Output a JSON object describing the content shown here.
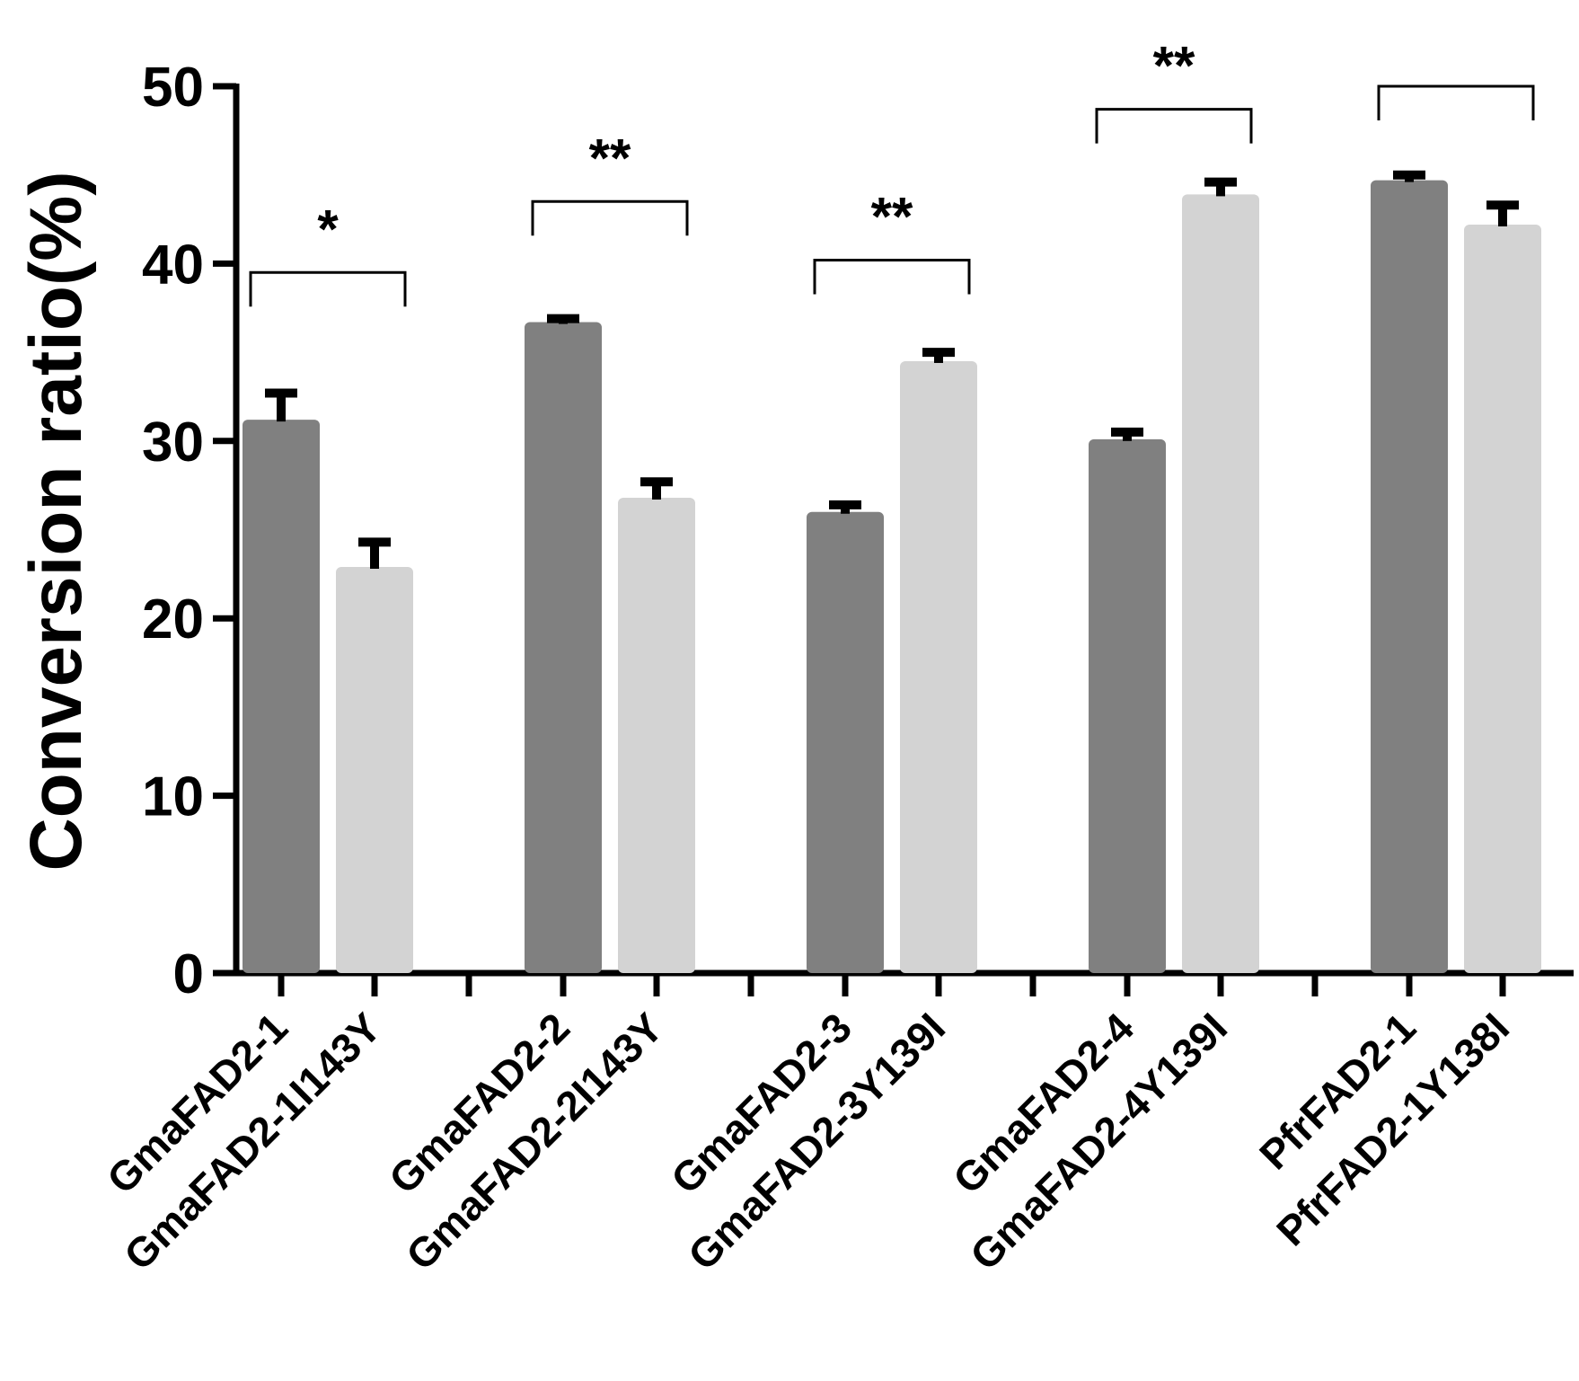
{
  "chart_data": {
    "type": "bar",
    "title": "",
    "xlabel": "",
    "ylabel": "Conversion ratio(%)",
    "ylim": [
      0,
      50
    ],
    "yticks": [
      0,
      10,
      20,
      30,
      40,
      50
    ],
    "grid": false,
    "categories": [
      "GmaFAD2-1",
      "GmaFAD2-1I143Y",
      "GmaFAD2-2",
      "GmaFAD2-2I143Y",
      "GmaFAD2-3",
      "GmaFAD2-3Y139I",
      "GmaFAD2-4",
      "GmaFAD2-4Y139I",
      "PfrFAD2-1",
      "PfrFAD2-1Y138I"
    ],
    "values": [
      31.2,
      22.9,
      36.7,
      26.8,
      26.0,
      34.5,
      30.1,
      43.9,
      44.7,
      42.2
    ],
    "errors": [
      1.5,
      1.4,
      0.2,
      0.9,
      0.4,
      0.5,
      0.4,
      0.7,
      0.3,
      1.1
    ],
    "bar_colors": [
      "#808080",
      "#d3d3d3",
      "#808080",
      "#d3d3d3",
      "#808080",
      "#d3d3d3",
      "#808080",
      "#d3d3d3",
      "#808080",
      "#d3d3d3"
    ],
    "significance": [
      {
        "pair": [
          0,
          1
        ],
        "label": "*",
        "level": 39.5
      },
      {
        "pair": [
          2,
          3
        ],
        "label": "**",
        "level": 43.5
      },
      {
        "pair": [
          4,
          5
        ],
        "label": "**",
        "level": 40.2
      },
      {
        "pair": [
          6,
          7
        ],
        "label": "**",
        "level": 48.7
      },
      {
        "pair": [
          8,
          9
        ],
        "label": "",
        "level": 50.0
      }
    ]
  }
}
